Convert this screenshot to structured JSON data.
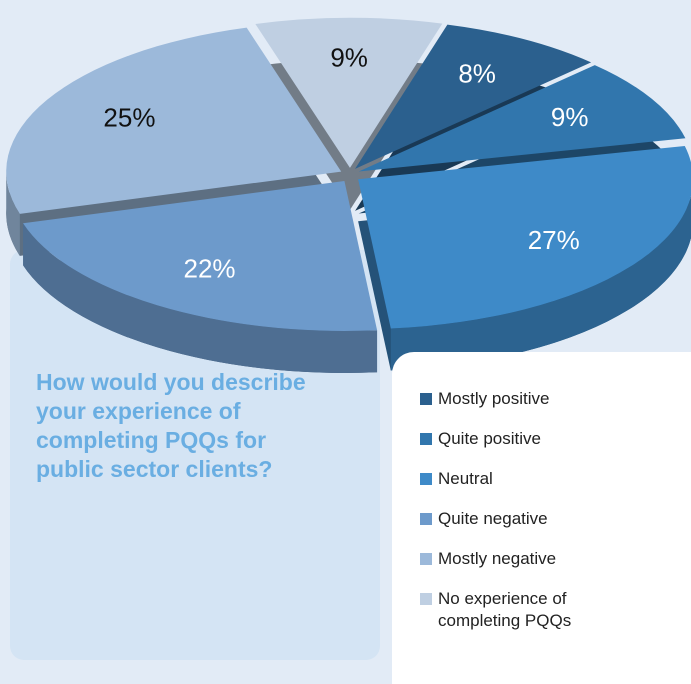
{
  "chart_data": {
    "type": "pie",
    "title": "How would you describe your experience of completing PQQs for public sector clients?",
    "categories": [
      "Mostly positive",
      "Quite positive",
      "Neutral",
      "Quite negative",
      "Mostly negative",
      "No experience of completing PQQs"
    ],
    "values": [
      8,
      9,
      27,
      22,
      25,
      9
    ],
    "value_labels": [
      "8%",
      "9%",
      "27%",
      "22%",
      "25%",
      "9%"
    ],
    "colors": [
      "#2b608e",
      "#3176ad",
      "#3e8ac8",
      "#6d9acb",
      "#9cb9da",
      "#bfcfe2"
    ]
  }
}
